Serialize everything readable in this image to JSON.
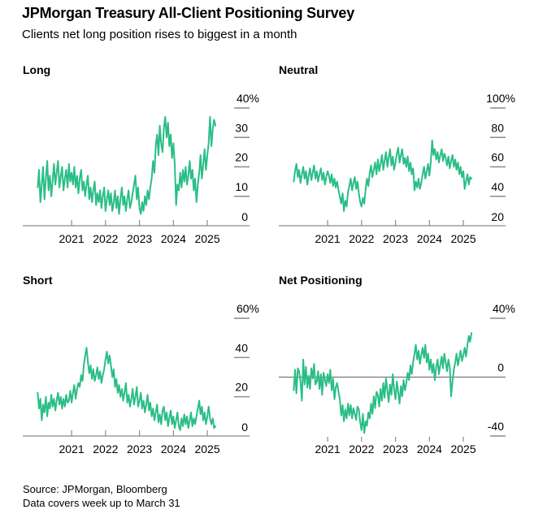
{
  "header": {
    "title": "JPMorgan Treasury All-Client Positioning Survey",
    "subtitle": "Clients net long position rises to biggest in a month"
  },
  "footer": {
    "source": "Source: JPMorgan, Bloomberg",
    "note": "Data covers week up to March 31"
  },
  "colors": {
    "line": "#2abe87",
    "axis": "#8a8a8a",
    "zero_line": "#787878",
    "text": "#000000",
    "background": "#ffffff"
  },
  "chart_data": [
    {
      "type": "line",
      "title": "Long",
      "unit": "%",
      "x_start": 2020.0,
      "x_step": 0.04,
      "x_domain": [
        2019.56,
        2026.22
      ],
      "x_ticks": [
        2021,
        2022,
        2023,
        2024,
        2025
      ],
      "ylim": [
        0,
        40
      ],
      "baseline": true,
      "y_ticks": [
        {
          "v": 40,
          "label": "40%",
          "dash": true
        },
        {
          "v": 30,
          "label": "30",
          "dash": true
        },
        {
          "v": 20,
          "label": "20",
          "dash": true
        },
        {
          "v": 10,
          "label": "10",
          "dash": true
        },
        {
          "v": 0,
          "label": "0",
          "dash": false
        }
      ],
      "values": [
        13,
        19,
        8,
        14,
        20,
        9,
        16,
        22,
        12,
        17,
        10,
        15,
        21,
        14,
        18,
        22,
        13,
        17,
        20,
        12,
        16,
        19,
        13,
        21,
        15,
        18,
        14,
        20,
        13,
        17,
        11,
        16,
        19,
        12,
        15,
        10,
        14,
        17,
        9,
        13,
        8,
        12,
        15,
        7,
        11,
        8,
        12,
        6,
        10,
        13,
        5,
        9,
        12,
        7,
        11,
        5,
        8,
        12,
        6,
        10,
        4,
        9,
        13,
        7,
        10,
        5,
        9,
        12,
        6,
        8,
        11,
        14,
        17,
        9,
        13,
        6,
        4,
        8,
        5,
        10,
        7,
        12,
        9,
        13,
        16,
        22,
        18,
        27,
        31,
        24,
        34,
        28,
        25,
        33,
        37,
        30,
        35,
        27,
        31,
        23,
        28,
        21,
        7,
        14,
        12,
        18,
        13,
        19,
        15,
        20,
        14,
        17,
        22,
        16,
        19,
        12,
        16,
        8,
        14,
        18,
        24,
        16,
        21,
        26,
        19,
        24,
        28,
        37,
        27,
        33,
        36,
        34
      ]
    },
    {
      "type": "line",
      "title": "Neutral",
      "unit": "%",
      "x_start": 2020.0,
      "x_step": 0.04,
      "x_domain": [
        2019.56,
        2026.22
      ],
      "x_ticks": [
        2021,
        2022,
        2023,
        2024,
        2025
      ],
      "ylim": [
        20,
        100
      ],
      "baseline": true,
      "y_ticks": [
        {
          "v": 100,
          "label": "100%",
          "dash": true
        },
        {
          "v": 80,
          "label": "80",
          "dash": true
        },
        {
          "v": 60,
          "label": "60",
          "dash": true
        },
        {
          "v": 40,
          "label": "40",
          "dash": true
        },
        {
          "v": 20,
          "label": "20",
          "dash": false
        }
      ],
      "values": [
        50,
        57,
        62,
        53,
        58,
        49,
        55,
        60,
        52,
        57,
        48,
        54,
        59,
        51,
        56,
        61,
        52,
        57,
        50,
        55,
        59,
        51,
        56,
        48,
        53,
        57,
        54,
        49,
        55,
        47,
        52,
        46,
        50,
        44,
        40,
        35,
        42,
        30,
        37,
        33,
        43,
        47,
        52,
        44,
        49,
        53,
        45,
        50,
        42,
        36,
        33,
        39,
        35,
        45,
        52,
        47,
        56,
        61,
        53,
        58,
        63,
        55,
        65,
        57,
        62,
        68,
        58,
        64,
        70,
        60,
        66,
        72,
        61,
        67,
        58,
        63,
        69,
        73,
        63,
        68,
        72,
        62,
        66,
        60,
        67,
        57,
        63,
        55,
        59,
        44,
        50,
        46,
        52,
        45,
        49,
        55,
        60,
        52,
        57,
        62,
        54,
        63,
        78,
        68,
        72,
        65,
        70,
        63,
        68,
        72,
        64,
        69,
        66,
        61,
        67,
        59,
        64,
        68,
        60,
        65,
        58,
        63,
        55,
        60,
        53,
        57,
        45,
        50,
        55,
        48,
        53,
        52
      ]
    },
    {
      "type": "line",
      "title": "Short",
      "unit": "%",
      "x_start": 2020.0,
      "x_step": 0.04,
      "x_domain": [
        2019.56,
        2026.22
      ],
      "x_ticks": [
        2021,
        2022,
        2023,
        2024,
        2025
      ],
      "ylim": [
        0,
        60
      ],
      "baseline": true,
      "y_ticks": [
        {
          "v": 60,
          "label": "60%",
          "dash": true
        },
        {
          "v": 40,
          "label": "40",
          "dash": true
        },
        {
          "v": 20,
          "label": "20",
          "dash": true
        },
        {
          "v": 0,
          "label": "0",
          "dash": false
        }
      ],
      "values": [
        22,
        14,
        19,
        8,
        16,
        12,
        20,
        10,
        17,
        14,
        21,
        15,
        19,
        13,
        18,
        22,
        16,
        20,
        14,
        19,
        15,
        21,
        17,
        18,
        23,
        17,
        22,
        26,
        19,
        24,
        27,
        25,
        31,
        28,
        36,
        41,
        45,
        38,
        32,
        36,
        29,
        34,
        28,
        31,
        35,
        29,
        33,
        27,
        31,
        34,
        39,
        43,
        37,
        41,
        36,
        30,
        34,
        25,
        29,
        22,
        26,
        20,
        24,
        18,
        22,
        27,
        17,
        21,
        15,
        19,
        24,
        16,
        20,
        25,
        15,
        18,
        22,
        14,
        18,
        12,
        16,
        21,
        13,
        17,
        10,
        14,
        8,
        12,
        16,
        7,
        11,
        6,
        13,
        15,
        8,
        12,
        5,
        9,
        13,
        6,
        10,
        4,
        8,
        12,
        5,
        3,
        9,
        5,
        11,
        6,
        10,
        4,
        8,
        12,
        5,
        9,
        6,
        10,
        14,
        18,
        11,
        15,
        8,
        12,
        6,
        10,
        15,
        9,
        6,
        9,
        4,
        5
      ]
    },
    {
      "type": "line",
      "title": "Net Positioning",
      "unit": "%",
      "x_start": 2020.0,
      "x_step": 0.04,
      "x_domain": [
        2019.56,
        2026.22
      ],
      "x_ticks": [
        2021,
        2022,
        2023,
        2024,
        2025
      ],
      "ylim": [
        -40,
        40
      ],
      "baseline": false,
      "y_ticks": [
        {
          "v": 40,
          "label": "40%",
          "dash": true
        },
        {
          "v": 0,
          "label": "0",
          "dash": false,
          "zero_line": true
        },
        {
          "v": -40,
          "label": "-40",
          "dash": true
        }
      ],
      "values": [
        -9,
        5,
        -11,
        6,
        4,
        -3,
        -16,
        12,
        -5,
        7,
        -7,
        1,
        -8,
        6,
        -1,
        9,
        -5,
        -3,
        4,
        -8,
        2,
        -12,
        3,
        -2,
        -6,
        2,
        -4,
        5,
        -9,
        -1,
        -15,
        -7,
        -4,
        -10,
        -15,
        -26,
        -19,
        -30,
        -22,
        -28,
        -18,
        -26,
        -19,
        -28,
        -21,
        -25,
        -29,
        -20,
        -22,
        -31,
        -36,
        -25,
        -38,
        -30,
        -33,
        -24,
        -28,
        -18,
        -25,
        -13,
        -21,
        -10,
        -12,
        -20,
        -8,
        -16,
        -4,
        -14,
        -1,
        -9,
        -17,
        -5,
        -12,
        2,
        -8,
        -15,
        -3,
        -10,
        -18,
        -6,
        -13,
        -2,
        -9,
        -4,
        3,
        -2,
        8,
        2,
        10,
        16,
        22,
        12,
        18,
        9,
        15,
        20,
        13,
        22,
        10,
        16,
        5,
        12,
        3,
        9,
        -2,
        7,
        12,
        2,
        8,
        14,
        6,
        16,
        10,
        4,
        12,
        7,
        -13,
        -3,
        5,
        10,
        16,
        8,
        13,
        18,
        11,
        15,
        20,
        14,
        22,
        28,
        24,
        30
      ]
    }
  ]
}
